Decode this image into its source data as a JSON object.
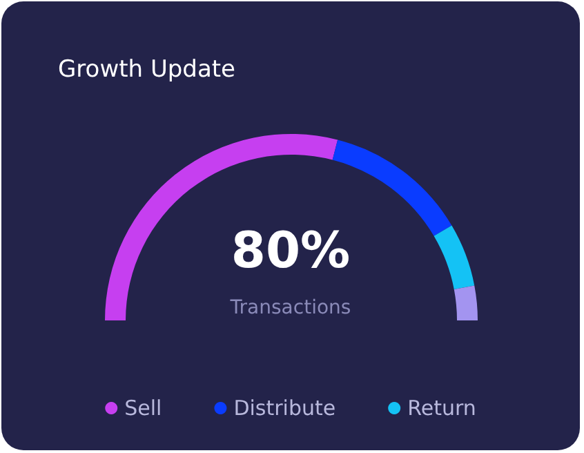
{
  "chart_data": {
    "type": "donut",
    "title": "Growth Update",
    "categories": [
      "Sell",
      "Distribute",
      "Return",
      null
    ],
    "values": [
      58,
      25,
      11,
      6
    ],
    "colors": [
      "#c63ff0",
      "#0a3cff",
      "#14c2f5",
      "#a394f0"
    ],
    "annotations": [
      "80%",
      "Transactions"
    ],
    "legend": "bottom"
  }
}
